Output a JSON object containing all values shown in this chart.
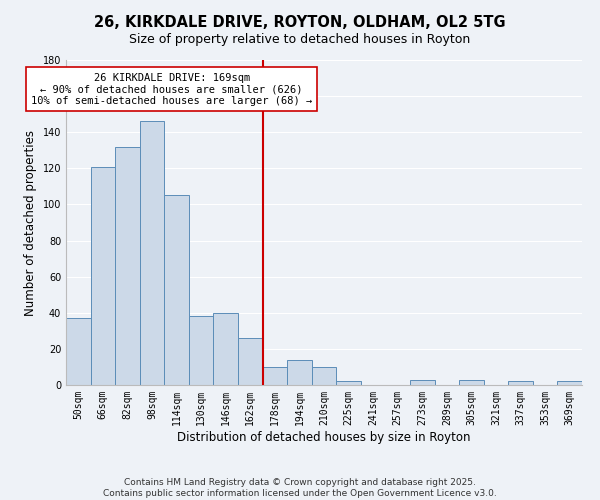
{
  "title": "26, KIRKDALE DRIVE, ROYTON, OLDHAM, OL2 5TG",
  "subtitle": "Size of property relative to detached houses in Royton",
  "xlabel": "Distribution of detached houses by size in Royton",
  "ylabel": "Number of detached properties",
  "bar_labels": [
    "50sqm",
    "66sqm",
    "82sqm",
    "98sqm",
    "114sqm",
    "130sqm",
    "146sqm",
    "162sqm",
    "178sqm",
    "194sqm",
    "210sqm",
    "225sqm",
    "241sqm",
    "257sqm",
    "273sqm",
    "289sqm",
    "305sqm",
    "321sqm",
    "337sqm",
    "353sqm",
    "369sqm"
  ],
  "bar_values": [
    37,
    121,
    132,
    146,
    105,
    38,
    40,
    26,
    10,
    14,
    10,
    2,
    0,
    0,
    3,
    0,
    3,
    0,
    2,
    0,
    2
  ],
  "bar_color": "#ccd9e8",
  "bar_edge_color": "#5b8db8",
  "vline_x_index": 7.5,
  "vline_color": "#cc0000",
  "annotation_title": "26 KIRKDALE DRIVE: 169sqm",
  "annotation_line1": "← 90% of detached houses are smaller (626)",
  "annotation_line2": "10% of semi-detached houses are larger (68) →",
  "ylim": [
    0,
    180
  ],
  "yticks": [
    0,
    20,
    40,
    60,
    80,
    100,
    120,
    140,
    160,
    180
  ],
  "footer1": "Contains HM Land Registry data © Crown copyright and database right 2025.",
  "footer2": "Contains public sector information licensed under the Open Government Licence v3.0.",
  "bg_color": "#eef2f7",
  "grid_color": "#ffffff",
  "title_fontsize": 10.5,
  "subtitle_fontsize": 9,
  "axis_label_fontsize": 8.5,
  "tick_fontsize": 7,
  "annotation_fontsize": 7.5,
  "footer_fontsize": 6.5
}
